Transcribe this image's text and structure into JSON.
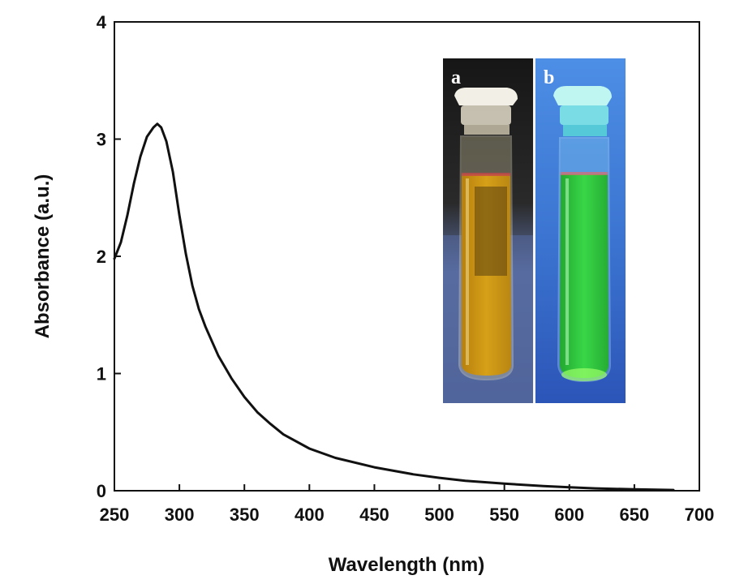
{
  "chart_data": {
    "type": "line",
    "title": "",
    "xlabel": "Wavelength (nm)",
    "ylabel": "Absorbance (a.u.)",
    "xlim": [
      250,
      700
    ],
    "ylim": [
      0,
      4
    ],
    "xticks": [
      "250",
      "300",
      "350",
      "400",
      "450",
      "500",
      "550",
      "600",
      "650",
      "700"
    ],
    "yticks": [
      "0",
      "1",
      "2",
      "3",
      "4"
    ],
    "grid": false,
    "legend": "none",
    "line_color": "#111111",
    "series": [
      {
        "x": [
          250,
          255,
          260,
          265,
          270,
          275,
          280,
          283,
          286,
          290,
          295,
          300,
          305,
          310,
          315,
          320,
          330,
          340,
          350,
          360,
          370,
          380,
          400,
          420,
          450,
          480,
          500,
          520,
          550,
          580,
          600,
          620,
          650,
          680
        ],
        "y": [
          1.98,
          2.12,
          2.35,
          2.62,
          2.85,
          3.02,
          3.1,
          3.13,
          3.1,
          2.98,
          2.72,
          2.35,
          2.02,
          1.75,
          1.55,
          1.4,
          1.15,
          0.96,
          0.8,
          0.67,
          0.57,
          0.48,
          0.36,
          0.28,
          0.2,
          0.14,
          0.11,
          0.085,
          0.06,
          0.04,
          0.03,
          0.02,
          0.012,
          0.006
        ]
      }
    ],
    "inset": {
      "panels": [
        {
          "label": "a",
          "liquid_color": "#d6a018",
          "background_color": "#5b6ea0"
        },
        {
          "label": "b",
          "liquid_color": "#2fd23c",
          "background_color": "#2c55b8"
        }
      ]
    }
  }
}
